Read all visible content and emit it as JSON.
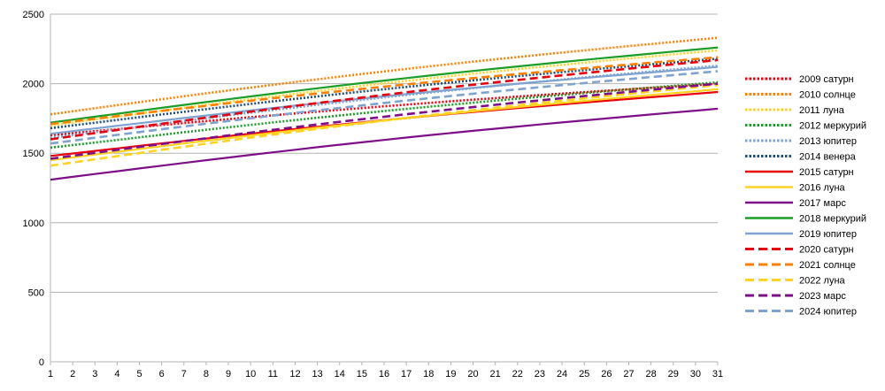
{
  "chart_data": {
    "type": "line",
    "title": "",
    "xlabel": "",
    "ylabel": "",
    "x": [
      1,
      2,
      3,
      4,
      5,
      6,
      7,
      8,
      9,
      10,
      11,
      12,
      13,
      14,
      15,
      16,
      17,
      18,
      19,
      20,
      21,
      22,
      23,
      24,
      25,
      26,
      27,
      28,
      29,
      30,
      31
    ],
    "ylim": [
      0,
      2500
    ],
    "yticks": [
      0,
      500,
      1000,
      1500,
      2000,
      2500
    ],
    "grid": "horizontal",
    "legend_position": "right",
    "series": [
      {
        "name": "2009 сатурн",
        "color": "#e8000e",
        "style": "dotted",
        "start": 1630,
        "end": 2000
      },
      {
        "name": "2010 солнце",
        "color": "#ff8000",
        "style": "dotted",
        "start": 1780,
        "end": 2330
      },
      {
        "name": "2011 луна",
        "color": "#ffd320",
        "style": "dotted",
        "start": 1700,
        "end": 2240
      },
      {
        "name": "2012 меркурий",
        "color": "#1a9e28",
        "style": "dotted",
        "start": 1540,
        "end": 2010
      },
      {
        "name": "2013 юпитер",
        "color": "#7ea3d1",
        "style": "dotted",
        "start": 1610,
        "end": 2130
      },
      {
        "name": "2014 венера",
        "color": "#1f4e79",
        "style": "dotted",
        "start": 1680,
        "end": 2180
      },
      {
        "name": "2015 сатурн",
        "color": "#e8000e",
        "style": "solid",
        "start": 1480,
        "end": 1940
      },
      {
        "name": "2016 луна",
        "color": "#ffd320",
        "style": "solid",
        "start": 1450,
        "end": 1960
      },
      {
        "name": "2017 марс",
        "color": "#7e0f88",
        "style": "solid",
        "start": 1310,
        "end": 1820
      },
      {
        "name": "2018 меркурий",
        "color": "#1a9e28",
        "style": "solid",
        "start": 1720,
        "end": 2260
      },
      {
        "name": "2019 юпитер",
        "color": "#7ea3d1",
        "style": "solid",
        "start": 1640,
        "end": 2120
      },
      {
        "name": "2020 сатурн",
        "color": "#e8000e",
        "style": "dashed",
        "start": 1600,
        "end": 2170
      },
      {
        "name": "2021 солнце",
        "color": "#ff8000",
        "style": "dashed",
        "start": 1710,
        "end": 2190
      },
      {
        "name": "2022 луна",
        "color": "#ffd320",
        "style": "dashed",
        "start": 1410,
        "end": 1990
      },
      {
        "name": "2023 марс",
        "color": "#7e0f88",
        "style": "dashed",
        "start": 1460,
        "end": 2000
      },
      {
        "name": "2024 юпитер",
        "color": "#7ea3d1",
        "style": "dashed",
        "start": 1570,
        "end": 2090
      }
    ]
  }
}
